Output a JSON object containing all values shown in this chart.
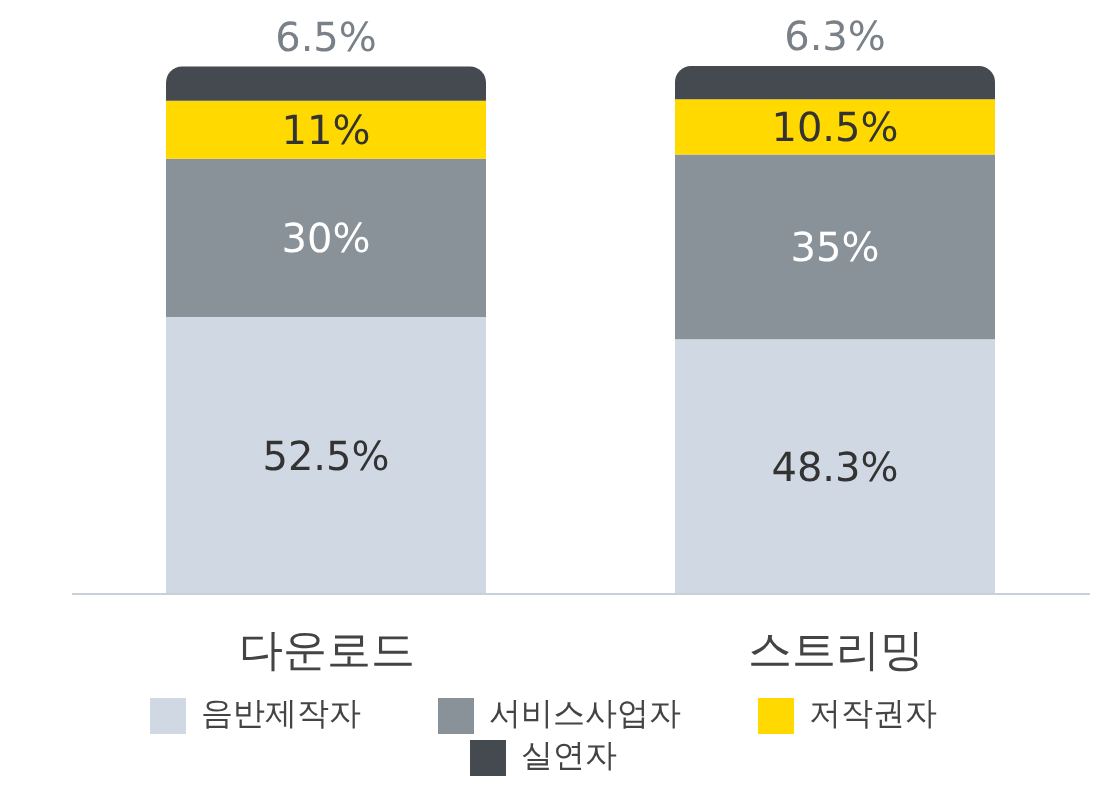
{
  "chart_data": {
    "type": "bar",
    "stacked": true,
    "legend": "bottom",
    "grid": false,
    "categories": [
      "다운로드",
      "스트리밍"
    ],
    "series": [
      {
        "name": "음반제작자",
        "color": "#cfd8e3",
        "values": [
          52.5,
          48.3
        ],
        "value_labels": [
          "52.5%",
          "48.3%"
        ]
      },
      {
        "name": "서비스사업자",
        "color": "#8a9299",
        "values": [
          30,
          35
        ],
        "value_labels": [
          "30%",
          "35%"
        ]
      },
      {
        "name": "저작권자",
        "color": "#ffd900",
        "values": [
          11,
          10.5
        ],
        "value_labels": [
          "11%",
          "10.5%"
        ]
      },
      {
        "name": "실연자",
        "color": "#454a50",
        "values": [
          6.5,
          6.3
        ],
        "value_labels": [
          "6.5%",
          "6.3%"
        ]
      }
    ]
  }
}
